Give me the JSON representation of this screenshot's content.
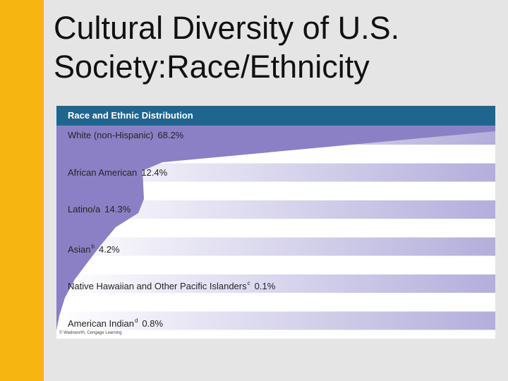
{
  "slide": {
    "title_line1": "Cultural Diversity of U.S.",
    "title_line2": "Society:Race/Ethnicity"
  },
  "figure": {
    "header": "Race and Ethnic Distribution",
    "credit": "© Wadsworth, Cengage Learning",
    "rows": [
      {
        "label": "White (non-Hispanic)",
        "value_text": "68.2%",
        "superscript": ""
      },
      {
        "label": "African American",
        "value_text": "12.4%",
        "superscript": ""
      },
      {
        "label": "Latino/a",
        "value_text": "14.3%",
        "superscript": ""
      },
      {
        "label": "Asian",
        "value_text": "4.2%",
        "superscript": "b"
      },
      {
        "label": "Native Hawaiian and Other Pacific Islanders",
        "value_text": "0.1%",
        "superscript": "c"
      },
      {
        "label": "American Indian",
        "value_text": "0.8%",
        "superscript": "d"
      }
    ]
  },
  "chart_data": {
    "type": "area",
    "title": "Race and Ethnic Distribution",
    "categories": [
      "White (non-Hispanic)",
      "African American",
      "Latino/a",
      "Asian",
      "Native Hawaiian and Other Pacific Islanders",
      "American Indian"
    ],
    "values": [
      68.2,
      12.4,
      14.3,
      4.2,
      0.1,
      0.8
    ],
    "unit": "%"
  },
  "colors": {
    "accent_bar": "#f7b511",
    "header_band": "#1f668f",
    "area_fill": "#8b80c5",
    "stripe_dark": "#b3aedb",
    "stripe_light": "#ffffff",
    "background": "#e5e5e5"
  }
}
